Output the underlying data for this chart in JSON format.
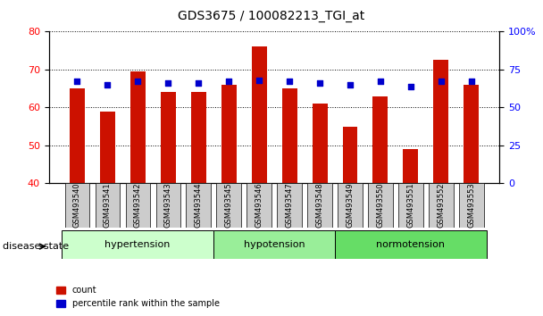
{
  "title": "GDS3675 / 100082213_TGI_at",
  "samples": [
    "GSM493540",
    "GSM493541",
    "GSM493542",
    "GSM493543",
    "GSM493544",
    "GSM493545",
    "GSM493546",
    "GSM493547",
    "GSM493548",
    "GSM493549",
    "GSM493550",
    "GSM493551",
    "GSM493552",
    "GSM493553"
  ],
  "red_values": [
    65.0,
    59.0,
    69.5,
    64.0,
    64.0,
    66.0,
    76.0,
    65.0,
    61.0,
    55.0,
    63.0,
    49.0,
    72.5,
    66.0
  ],
  "blue_values_pct": [
    67,
    65,
    67,
    66,
    66,
    67,
    68,
    67,
    66,
    65,
    67,
    64,
    67,
    67
  ],
  "ylim_left": [
    40,
    80
  ],
  "ylim_right": [
    0,
    100
  ],
  "yticks_left": [
    40,
    50,
    60,
    70,
    80
  ],
  "yticks_right": [
    0,
    25,
    50,
    75,
    100
  ],
  "ytick_labels_right": [
    "0",
    "25",
    "50",
    "75",
    "100%"
  ],
  "groups": [
    {
      "label": "hypertension",
      "start": 0,
      "end": 5,
      "color": "#ccffcc"
    },
    {
      "label": "hypotension",
      "start": 5,
      "end": 9,
      "color": "#99ee99"
    },
    {
      "label": "normotension",
      "start": 9,
      "end": 14,
      "color": "#66dd66"
    }
  ],
  "bar_color": "#cc1100",
  "dot_color": "#0000cc",
  "bar_width": 0.5,
  "disease_state_label": "disease state",
  "legend_count": "count",
  "legend_pct": "percentile rank within the sample",
  "bg_color": "#ffffff",
  "plot_bg": "#ffffff",
  "tick_label_bg": "#cccccc"
}
